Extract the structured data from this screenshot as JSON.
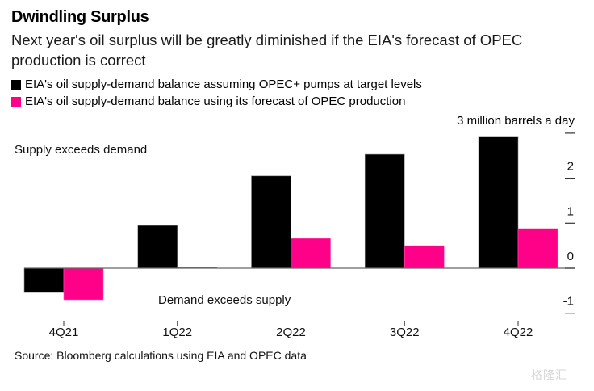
{
  "header": {
    "title": "Dwindling Surplus",
    "subtitle": "Next year's oil surplus will be greatly diminished if the EIA's forecast of OPEC production is correct"
  },
  "legend": [
    {
      "label": "EIA's oil supply-demand balance assuming OPEC+ pumps at target levels",
      "color": "#000000"
    },
    {
      "label": "EIA's oil supply-demand balance using its forecast of OPEC production",
      "color": "#ff0088"
    }
  ],
  "annotations": {
    "top": "Supply exceeds demand",
    "bottom": "Demand exceeds supply"
  },
  "footer": {
    "source": "Source: Bloomberg calculations using EIA and OPEC data",
    "watermark": "格隆汇"
  },
  "chart_data": {
    "type": "bar",
    "title": "Dwindling Surplus",
    "subtitle": "Next year's oil surplus will be greatly diminished if the EIA's forecast of OPEC production is correct",
    "xlabel": "",
    "ylabel": "3 million barrels a day",
    "categories": [
      "4Q21",
      "1Q22",
      "2Q22",
      "3Q22",
      "4Q22"
    ],
    "series": [
      {
        "name": "EIA's oil supply-demand balance assuming OPEC+ pumps at target levels",
        "color": "#000000",
        "values": [
          -0.54,
          0.95,
          2.05,
          2.53,
          2.93
        ]
      },
      {
        "name": "EIA's oil supply-demand balance using its forecast of OPEC production",
        "color": "#ff0088",
        "values": [
          -0.7,
          0.02,
          0.66,
          0.5,
          0.88
        ]
      }
    ],
    "ylim": [
      -1,
      3
    ],
    "yticks": [
      3,
      2,
      1,
      0,
      -1
    ],
    "ytick_labels": [
      "3 million barrels a day",
      "2",
      "1",
      "0",
      "-1"
    ],
    "axis_position": "right",
    "grid": false,
    "legend_position": "top-left"
  }
}
